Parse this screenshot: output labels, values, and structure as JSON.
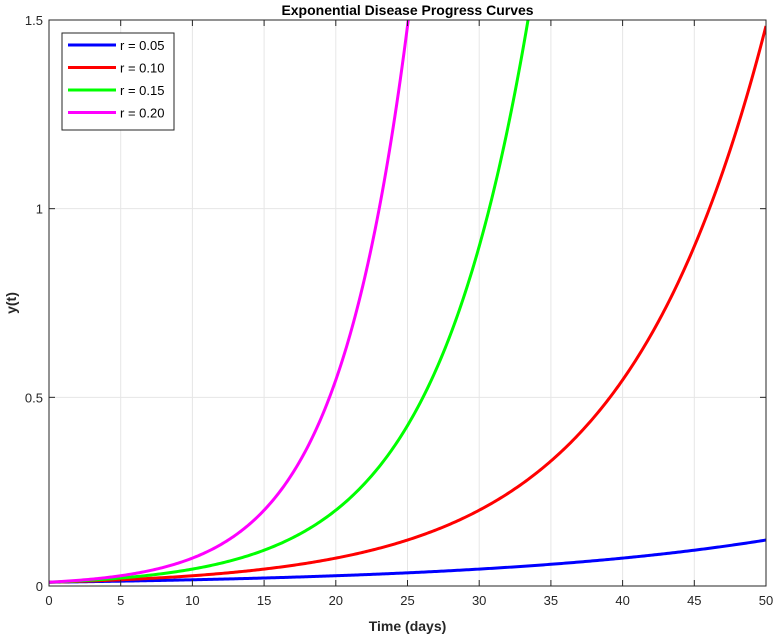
{
  "chart_data": {
    "type": "line",
    "title": "Exponential Disease Progress Curves",
    "xlabel": "Time (days)",
    "ylabel": "y(t)",
    "xlim": [
      0,
      50
    ],
    "ylim": [
      0,
      1.5
    ],
    "xticks": [
      0,
      5,
      10,
      15,
      20,
      25,
      30,
      35,
      40,
      45,
      50
    ],
    "yticks": [
      0,
      0.5,
      1,
      1.5
    ],
    "ytick_labels": [
      "0",
      "0.5",
      "1",
      "1.5"
    ],
    "grid": true,
    "legend_position": "top-left",
    "initial_value": 0.01,
    "series": [
      {
        "name": "r = 0.05",
        "r": 0.05,
        "color": "#0000ff"
      },
      {
        "name": "r = 0.10",
        "r": 0.1,
        "color": "#ff0000"
      },
      {
        "name": "r = 0.15",
        "r": 0.15,
        "color": "#00ff00"
      },
      {
        "name": "r = 0.20",
        "r": 0.2,
        "color": "#ff00ff"
      }
    ]
  }
}
